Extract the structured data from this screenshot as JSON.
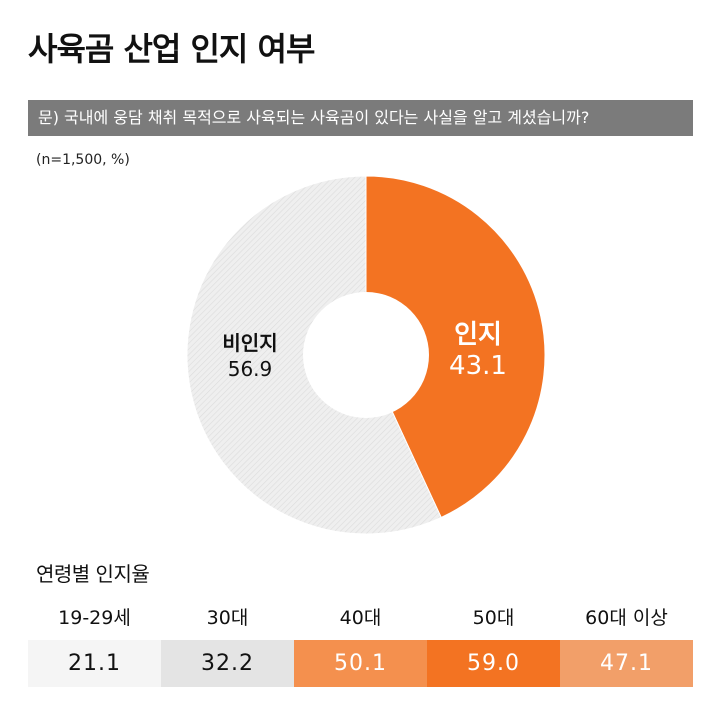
{
  "title": "사육곰 산업 인지 여부",
  "question": "문) 국내에 웅담 채취 목적으로 사육되는 사육곰이 있다는 사실을 알고 계셨습니까?",
  "note": "(n=1,500, %)",
  "chart_data": [
    {
      "type": "pie",
      "slices": [
        {
          "label": "인지",
          "value": 43.1,
          "color": "#f37322"
        },
        {
          "label": "비인지",
          "value": 56.9,
          "color": "#eeeeee"
        }
      ]
    },
    {
      "type": "table",
      "title": "연령별 인지율",
      "categories": [
        "19-29세",
        "30대",
        "40대",
        "50대",
        "60대 이상"
      ],
      "values": [
        21.1,
        32.2,
        50.1,
        59.0,
        47.1
      ],
      "display": [
        "21.1",
        "32.2",
        "50.1",
        "59.0",
        "47.1"
      ],
      "colors": [
        "#f5f5f5",
        "#e4e4e4",
        "#f4904e",
        "#f37322",
        "#f29f69"
      ]
    }
  ]
}
